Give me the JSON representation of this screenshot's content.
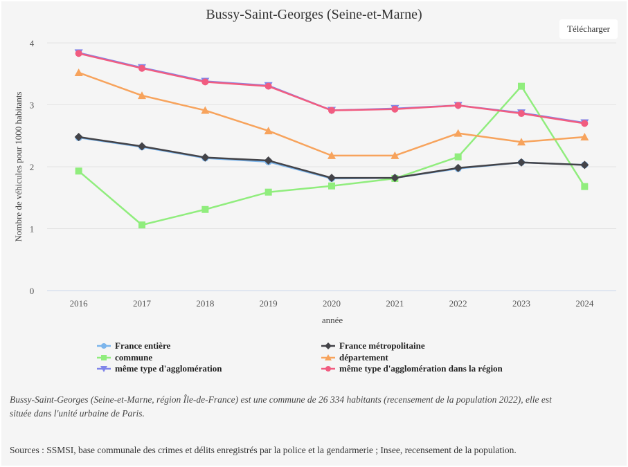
{
  "page": {
    "download_label": "Télécharger",
    "note": "Bussy-Saint-Georges (Seine-et-Marne, région Île-de-France) est une commune de 26 334 habitants (recensement de la population 2022), elle est située dans l'unité urbaine de Paris.",
    "sources": "Sources : SSMSI, base communale des crimes et délits enregistrés par la police et la gendarmerie ; Insee, recensement de la population."
  },
  "chart_data": {
    "type": "line",
    "title": "Bussy-Saint-Georges (Seine-et-Marne)",
    "xlabel": "année",
    "ylabel": "Nombre de véhicules pour 1000 habitants",
    "ylim": [
      0,
      4
    ],
    "yticks": [
      "0",
      "1",
      "2",
      "3",
      "4"
    ],
    "grid": true,
    "legend_position": "bottom",
    "categories": [
      "2016",
      "2017",
      "2018",
      "2019",
      "2020",
      "2021",
      "2022",
      "2023",
      "2024"
    ],
    "series": [
      {
        "name": "France entière",
        "color": "#7cb5ec",
        "marker": "circle",
        "values": [
          2.47,
          2.32,
          2.14,
          2.08,
          1.81,
          1.82,
          1.97,
          2.07,
          2.03
        ]
      },
      {
        "name": "France métropolitaine",
        "color": "#434348",
        "marker": "diamond",
        "values": [
          2.48,
          2.33,
          2.15,
          2.1,
          1.82,
          1.82,
          1.98,
          2.07,
          2.03
        ]
      },
      {
        "name": "commune",
        "color": "#90ed7d",
        "marker": "square",
        "values": [
          1.93,
          1.06,
          1.31,
          1.59,
          1.69,
          1.81,
          2.16,
          3.3,
          1.68
        ]
      },
      {
        "name": "département",
        "color": "#f7a35c",
        "marker": "triangle",
        "values": [
          3.52,
          3.15,
          2.91,
          2.58,
          2.18,
          2.18,
          2.54,
          2.4,
          2.48
        ]
      },
      {
        "name": "même type d'agglomération",
        "color": "#8085e9",
        "marker": "triangle-down",
        "values": [
          3.84,
          3.6,
          3.38,
          3.31,
          2.91,
          2.94,
          2.99,
          2.87,
          2.71
        ]
      },
      {
        "name": "même type d'agglomération dans la région",
        "color": "#f15c80",
        "marker": "circle",
        "values": [
          3.83,
          3.59,
          3.37,
          3.3,
          2.91,
          2.93,
          2.99,
          2.86,
          2.7
        ]
      }
    ]
  }
}
